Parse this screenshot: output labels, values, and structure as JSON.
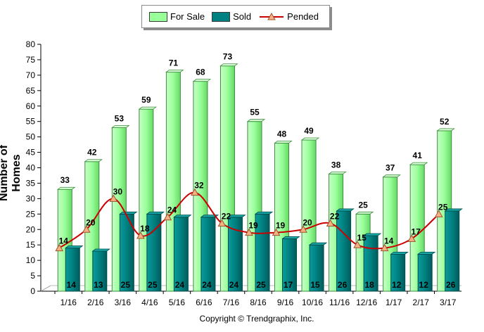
{
  "chart_data": {
    "type": "bar",
    "categories": [
      "1/16",
      "2/16",
      "3/16",
      "4/16",
      "5/16",
      "6/16",
      "7/16",
      "8/16",
      "9/16",
      "10/16",
      "11/16",
      "12/16",
      "1/17",
      "2/17",
      "3/17"
    ],
    "series": [
      {
        "name": "For Sale",
        "kind": "bar",
        "color": "#99ff99",
        "values": [
          33,
          42,
          53,
          59,
          71,
          68,
          73,
          55,
          48,
          49,
          38,
          25,
          37,
          41,
          52
        ]
      },
      {
        "name": "Sold",
        "kind": "bar",
        "color": "#008080",
        "values": [
          14,
          13,
          25,
          25,
          24,
          24,
          24,
          25,
          17,
          15,
          26,
          18,
          12,
          12,
          26
        ]
      },
      {
        "name": "Pended",
        "kind": "line",
        "color": "#cc0000",
        "marker_color": "#f4b183",
        "values": [
          14,
          20,
          30,
          18,
          24,
          32,
          22,
          19,
          19,
          20,
          22,
          15,
          14,
          17,
          25
        ]
      }
    ],
    "ylabel": "Number of Homes",
    "ylim": [
      0,
      80
    ],
    "yticks": [
      0,
      5,
      10,
      15,
      20,
      25,
      30,
      35,
      40,
      45,
      50,
      55,
      60,
      65,
      70,
      75,
      80
    ],
    "legend_position": "top-center",
    "grid": false
  },
  "legend": {
    "for_sale": "For Sale",
    "sold": "Sold",
    "pended": "Pended"
  },
  "copyright": "Copyright © Trendgraphix, Inc."
}
